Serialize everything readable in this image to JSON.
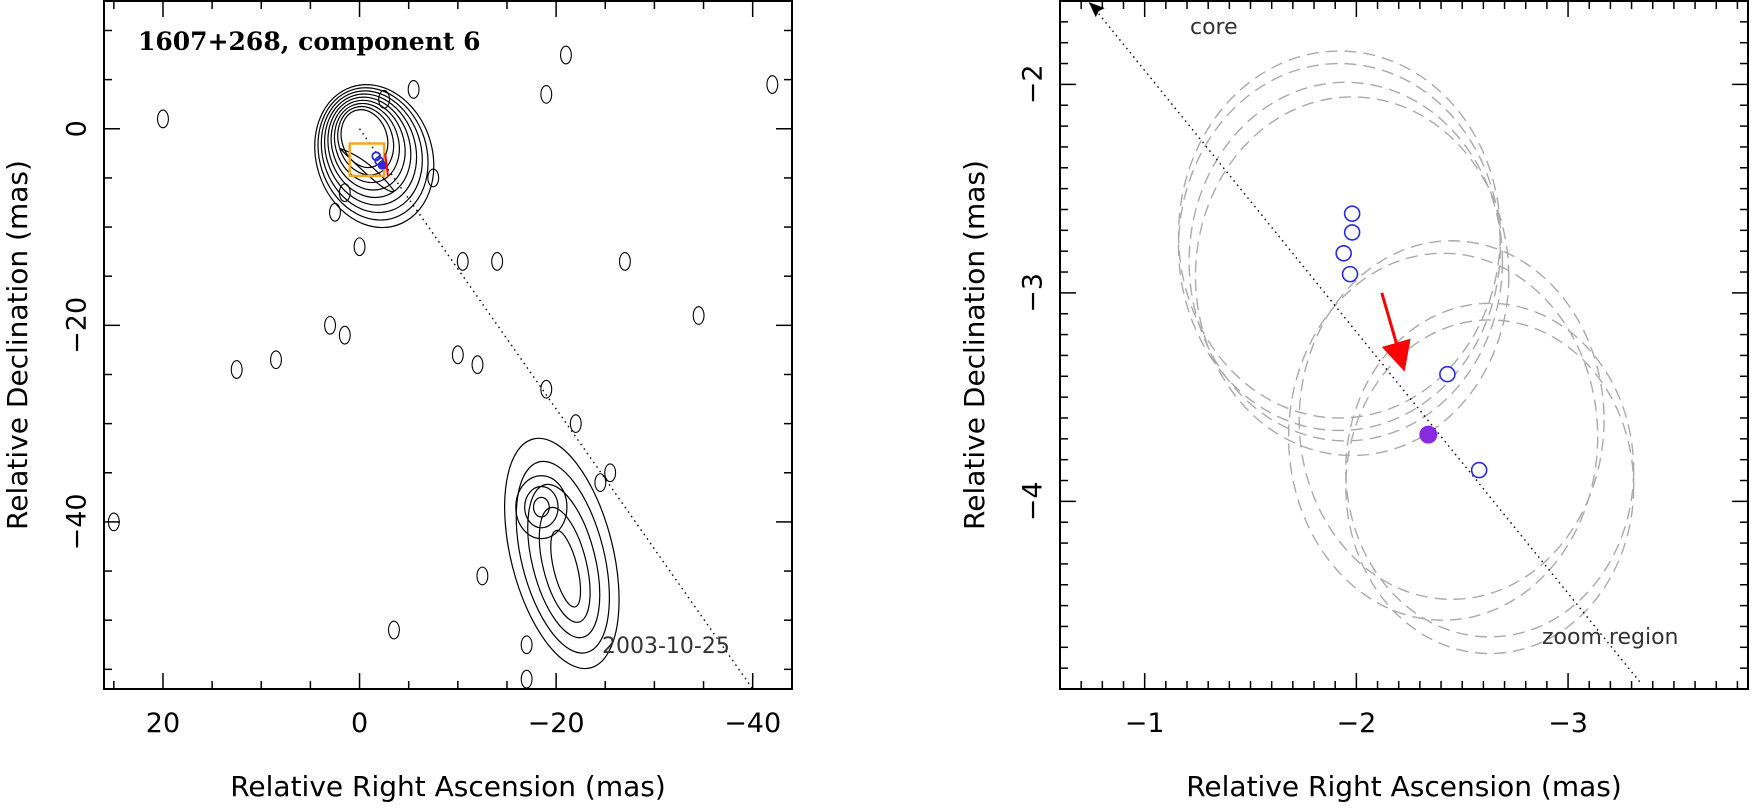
{
  "chart_data": [
    {
      "type": "contour",
      "title": "1607+268, component 6",
      "date_label": "2003-10-25",
      "xlabel": "Relative Right Ascension (mas)",
      "ylabel": "Relative Declination (mas)",
      "xlim": [
        26,
        -44
      ],
      "ylim": [
        -57,
        13
      ],
      "xticks": [
        20,
        0,
        -20,
        -40
      ],
      "yticks": [
        0,
        -20,
        -40
      ],
      "jet_axis_line": [
        [
          0,
          0
        ],
        [
          -40,
          -57
        ]
      ],
      "zoom_box": {
        "x": [
          1,
          -2.5
        ],
        "y": [
          -1.5,
          -4.8
        ]
      },
      "core_feature": {
        "x": -0.5,
        "y": -1.0
      },
      "lobe_feature": {
        "x": -20,
        "y": -45
      },
      "component_position": {
        "x": -2.3,
        "y": -3.7
      },
      "colors": {
        "contour": "#000000",
        "box": "#f5a623",
        "marker": "#2a2adb",
        "arrow": "#ff0000"
      }
    },
    {
      "type": "scatter",
      "xlabel": "Relative Right Ascension (mas)",
      "ylabel": "Relative Declination (mas)",
      "xlim": [
        -0.6,
        -3.85
      ],
      "ylim": [
        -4.9,
        -1.6
      ],
      "xticks": [
        -1,
        -2,
        -3
      ],
      "yticks": [
        -2,
        -3,
        -4
      ],
      "core_label": "core",
      "zoom_label": "zoom region",
      "jet_line": [
        [
          -0.75,
          -1.62
        ],
        [
          -3.35,
          -4.88
        ]
      ],
      "open_points": [
        {
          "x": -1.98,
          "y": -2.62
        },
        {
          "x": -1.98,
          "y": -2.71
        },
        {
          "x": -1.94,
          "y": -2.81
        },
        {
          "x": -1.97,
          "y": -2.91
        },
        {
          "x": -2.43,
          "y": -3.39
        },
        {
          "x": -2.58,
          "y": -3.85
        }
      ],
      "filled_point": {
        "x": -2.34,
        "y": -3.68
      },
      "velocity_arrow": {
        "from": [
          -2.12,
          -3.0
        ],
        "to": [
          -2.22,
          -3.35
        ]
      },
      "ellipses": [
        {
          "cx": -1.92,
          "cy": -2.72,
          "rx": 0.76,
          "ry": 0.88
        },
        {
          "cx": -1.92,
          "cy": -2.78,
          "rx": 0.76,
          "ry": 0.88
        },
        {
          "cx": -1.95,
          "cy": -2.85,
          "rx": 0.74,
          "ry": 0.86
        },
        {
          "cx": -1.98,
          "cy": -2.92,
          "rx": 0.74,
          "ry": 0.86
        },
        {
          "cx": -2.41,
          "cy": -3.69,
          "rx": 0.73,
          "ry": 0.88
        },
        {
          "cx": -2.45,
          "cy": -3.61,
          "rx": 0.72,
          "ry": 0.86
        },
        {
          "cx": -2.63,
          "cy": -3.85,
          "rx": 0.68,
          "ry": 0.8
        },
        {
          "cx": -2.63,
          "cy": -3.93,
          "rx": 0.68,
          "ry": 0.8
        }
      ],
      "colors": {
        "open": "#2a2adb",
        "filled": "#8a2be2",
        "arrow": "#ff0000",
        "ellipse": "#aaaaaa",
        "line": "#000000"
      }
    }
  ]
}
